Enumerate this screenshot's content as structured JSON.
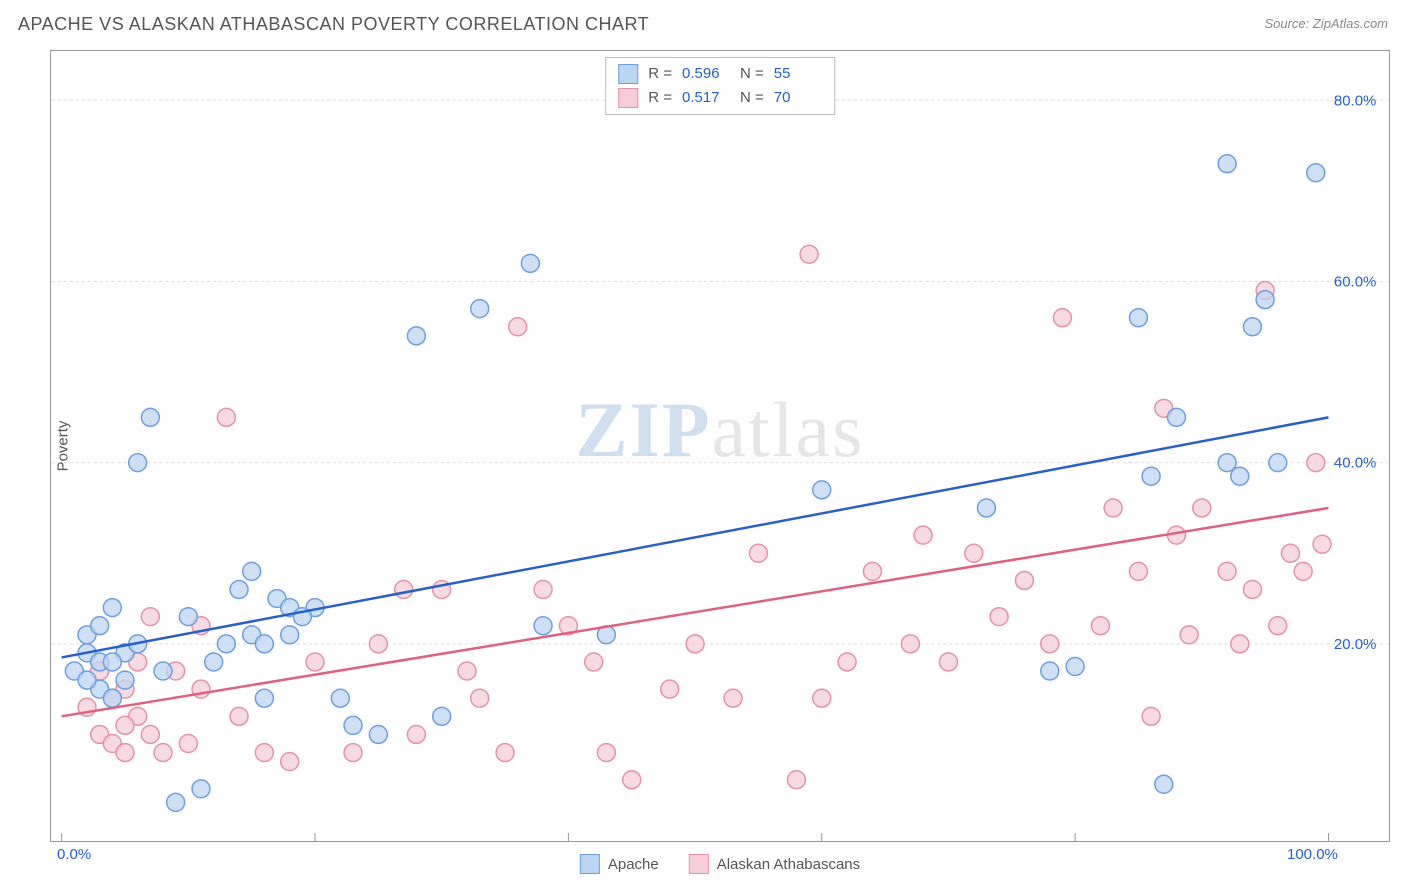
{
  "title": "APACHE VS ALASKAN ATHABASCAN POVERTY CORRELATION CHART",
  "source_label": "Source: ZipAtlas.com",
  "y_axis_label": "Poverty",
  "watermark": {
    "zip": "ZIP",
    "atlas": "atlas"
  },
  "chart": {
    "type": "scatter",
    "background_color": "#ffffff",
    "border_color": "#999999",
    "grid_color": "#dddddd",
    "xlim": [
      0,
      100
    ],
    "ylim": [
      0,
      85
    ],
    "x_ticks": [
      0,
      20,
      40,
      60,
      80,
      100
    ],
    "x_tick_labels": [
      "0.0%",
      "",
      "",
      "",
      "",
      "100.0%"
    ],
    "x_tick_label_color": "#2761c7",
    "y_ticks": [
      20,
      40,
      60,
      80
    ],
    "y_tick_labels": [
      "20.0%",
      "40.0%",
      "60.0%",
      "80.0%"
    ],
    "y_tick_label_color": "#2761c7",
    "tick_color": "#999999",
    "marker_radius": 9,
    "marker_stroke_width": 1.5,
    "trend_stroke_width": 2.5,
    "series": [
      {
        "name": "Apache",
        "fill": "#bcd5f2",
        "stroke": "#6d9fe0",
        "trend_color": "#2761c7",
        "R_label": "R =",
        "R_value": "0.596",
        "N_label": "N =",
        "N_value": "55",
        "trend": {
          "x1": 0,
          "y1": 18.5,
          "x2": 100,
          "y2": 45
        },
        "points": [
          [
            1,
            17
          ],
          [
            2,
            19
          ],
          [
            2,
            21
          ],
          [
            3,
            15
          ],
          [
            3,
            18
          ],
          [
            3,
            22
          ],
          [
            4,
            14
          ],
          [
            4,
            24
          ],
          [
            5,
            19
          ],
          [
            6,
            40
          ],
          [
            7,
            45
          ],
          [
            9,
            2.5
          ],
          [
            10,
            23
          ],
          [
            11,
            4
          ],
          [
            13,
            20
          ],
          [
            15,
            21
          ],
          [
            15,
            28
          ],
          [
            16,
            14
          ],
          [
            16,
            20
          ],
          [
            17,
            25
          ],
          [
            18,
            21
          ],
          [
            18,
            24
          ],
          [
            22,
            14
          ],
          [
            23,
            11
          ],
          [
            25,
            10
          ],
          [
            28,
            54
          ],
          [
            30,
            12
          ],
          [
            33,
            57
          ],
          [
            37,
            62
          ],
          [
            38,
            22
          ],
          [
            43,
            21
          ],
          [
            60,
            37
          ],
          [
            73,
            35
          ],
          [
            78,
            17
          ],
          [
            80,
            17.5
          ],
          [
            85,
            56
          ],
          [
            86,
            38.5
          ],
          [
            87,
            4.5
          ],
          [
            88,
            45
          ],
          [
            92,
            73
          ],
          [
            92,
            40
          ],
          [
            93,
            38.5
          ],
          [
            94,
            55
          ],
          [
            95,
            58
          ],
          [
            96,
            40
          ],
          [
            99,
            72
          ],
          [
            4,
            18
          ],
          [
            5,
            16
          ],
          [
            6,
            20
          ],
          [
            8,
            17
          ],
          [
            12,
            18
          ],
          [
            14,
            26
          ],
          [
            20,
            24
          ],
          [
            19,
            23
          ],
          [
            2,
            16
          ]
        ]
      },
      {
        "name": "Alaskan Athabascans",
        "fill": "#f6cdd8",
        "stroke": "#e592aa",
        "trend_color": "#e0607f",
        "R_label": "R =",
        "R_value": "0.517",
        "N_label": "N =",
        "N_value": "70",
        "trend": {
          "x1": 0,
          "y1": 12,
          "x2": 100,
          "y2": 35
        },
        "points": [
          [
            2,
            13
          ],
          [
            3,
            10
          ],
          [
            3,
            17
          ],
          [
            4,
            9
          ],
          [
            5,
            8
          ],
          [
            5,
            15
          ],
          [
            6,
            12
          ],
          [
            6,
            18
          ],
          [
            7,
            10
          ],
          [
            7,
            23
          ],
          [
            8,
            8
          ],
          [
            9,
            17
          ],
          [
            10,
            9
          ],
          [
            11,
            15
          ],
          [
            13,
            45
          ],
          [
            14,
            12
          ],
          [
            16,
            8
          ],
          [
            18,
            7
          ],
          [
            20,
            18
          ],
          [
            23,
            8
          ],
          [
            25,
            20
          ],
          [
            27,
            26
          ],
          [
            28,
            10
          ],
          [
            30,
            26
          ],
          [
            32,
            17
          ],
          [
            35,
            8
          ],
          [
            36,
            55
          ],
          [
            38,
            26
          ],
          [
            40,
            22
          ],
          [
            42,
            18
          ],
          [
            43,
            8
          ],
          [
            45,
            5
          ],
          [
            48,
            15
          ],
          [
            50,
            20
          ],
          [
            53,
            14
          ],
          [
            55,
            30
          ],
          [
            58,
            5
          ],
          [
            59,
            63
          ],
          [
            60,
            14
          ],
          [
            62,
            18
          ],
          [
            64,
            28
          ],
          [
            67,
            20
          ],
          [
            68,
            32
          ],
          [
            70,
            18
          ],
          [
            72,
            30
          ],
          [
            74,
            23
          ],
          [
            76,
            27
          ],
          [
            78,
            20
          ],
          [
            79,
            56
          ],
          [
            82,
            22
          ],
          [
            83,
            35
          ],
          [
            85,
            28
          ],
          [
            86,
            12
          ],
          [
            87,
            46
          ],
          [
            88,
            32
          ],
          [
            89,
            21
          ],
          [
            90,
            35
          ],
          [
            92,
            28
          ],
          [
            93,
            20
          ],
          [
            94,
            26
          ],
          [
            95,
            59
          ],
          [
            96,
            22
          ],
          [
            97,
            30
          ],
          [
            98,
            28
          ],
          [
            99,
            40
          ],
          [
            99.5,
            31
          ],
          [
            4,
            14
          ],
          [
            5,
            11
          ],
          [
            11,
            22
          ],
          [
            33,
            14
          ]
        ]
      }
    ]
  },
  "legend": {
    "apache": "Apache",
    "athabascan": "Alaskan Athabascans"
  }
}
